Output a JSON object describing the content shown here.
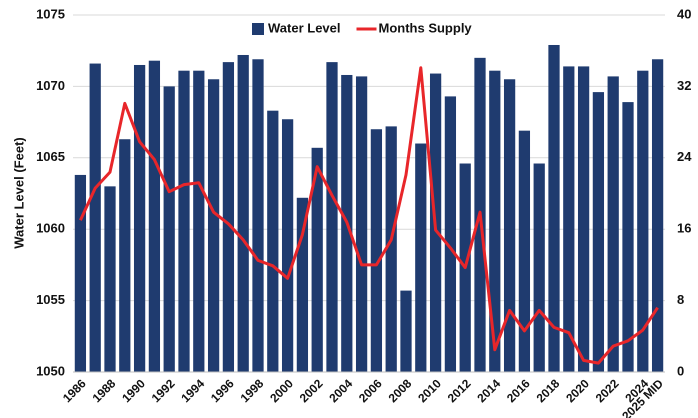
{
  "chart_data": {
    "type": "bar_line",
    "y_label": "Water Level (Feet)",
    "categories": [
      "1986",
      null,
      "1988",
      null,
      "1990",
      null,
      "1992",
      null,
      "1994",
      null,
      "1996",
      null,
      "1998",
      null,
      "2000",
      null,
      "2002",
      null,
      "2004",
      null,
      "2006",
      null,
      "2008",
      null,
      "2010",
      null,
      "2012",
      null,
      "2014",
      null,
      "2016",
      null,
      "2018",
      null,
      "2020",
      null,
      "2022",
      null,
      "2024",
      "2025 MID"
    ],
    "series": [
      {
        "name": "Water Level",
        "color": "#1f3b6f",
        "kind": "bar",
        "values": [
          1063.8,
          1071.6,
          1063.0,
          1066.3,
          1071.5,
          1071.8,
          1070.0,
          1071.1,
          1071.1,
          1070.5,
          1071.7,
          1072.2,
          1071.9,
          1068.3,
          1067.7,
          1062.2,
          1065.7,
          1071.7,
          1070.8,
          1070.7,
          1067.0,
          1067.2,
          1055.7,
          1066.0,
          1070.9,
          1069.3,
          1064.6,
          1072.0,
          1071.1,
          1070.5,
          1066.9,
          1064.6,
          1072.9,
          1071.4,
          1071.4,
          1069.6,
          1070.7,
          1068.9,
          1071.1,
          1071.9
        ]
      },
      {
        "name": "Months Supply",
        "color": "#e8262a",
        "kind": "line",
        "axis": "y2",
        "values": [
          17.0,
          20.6,
          22.4,
          30.1,
          25.8,
          23.8,
          20.2,
          21.0,
          21.2,
          17.9,
          16.6,
          14.8,
          12.5,
          11.9,
          10.5,
          15.4,
          23.0,
          19.8,
          16.8,
          12.0,
          12.0,
          14.8,
          22.1,
          34.1,
          15.9,
          13.9,
          11.7,
          17.9,
          2.5,
          6.9,
          4.6,
          6.9,
          5.0,
          4.4,
          1.3,
          1.0,
          2.9,
          3.5,
          4.7,
          7.2
        ]
      }
    ],
    "ylim": [
      1050,
      1075
    ],
    "yticks": [
      1050,
      1055,
      1060,
      1065,
      1070,
      1075
    ],
    "y2lim": [
      0,
      40
    ],
    "y2ticks": [
      0,
      8,
      16,
      24,
      32,
      40
    ],
    "grid": true,
    "legend": "top"
  }
}
